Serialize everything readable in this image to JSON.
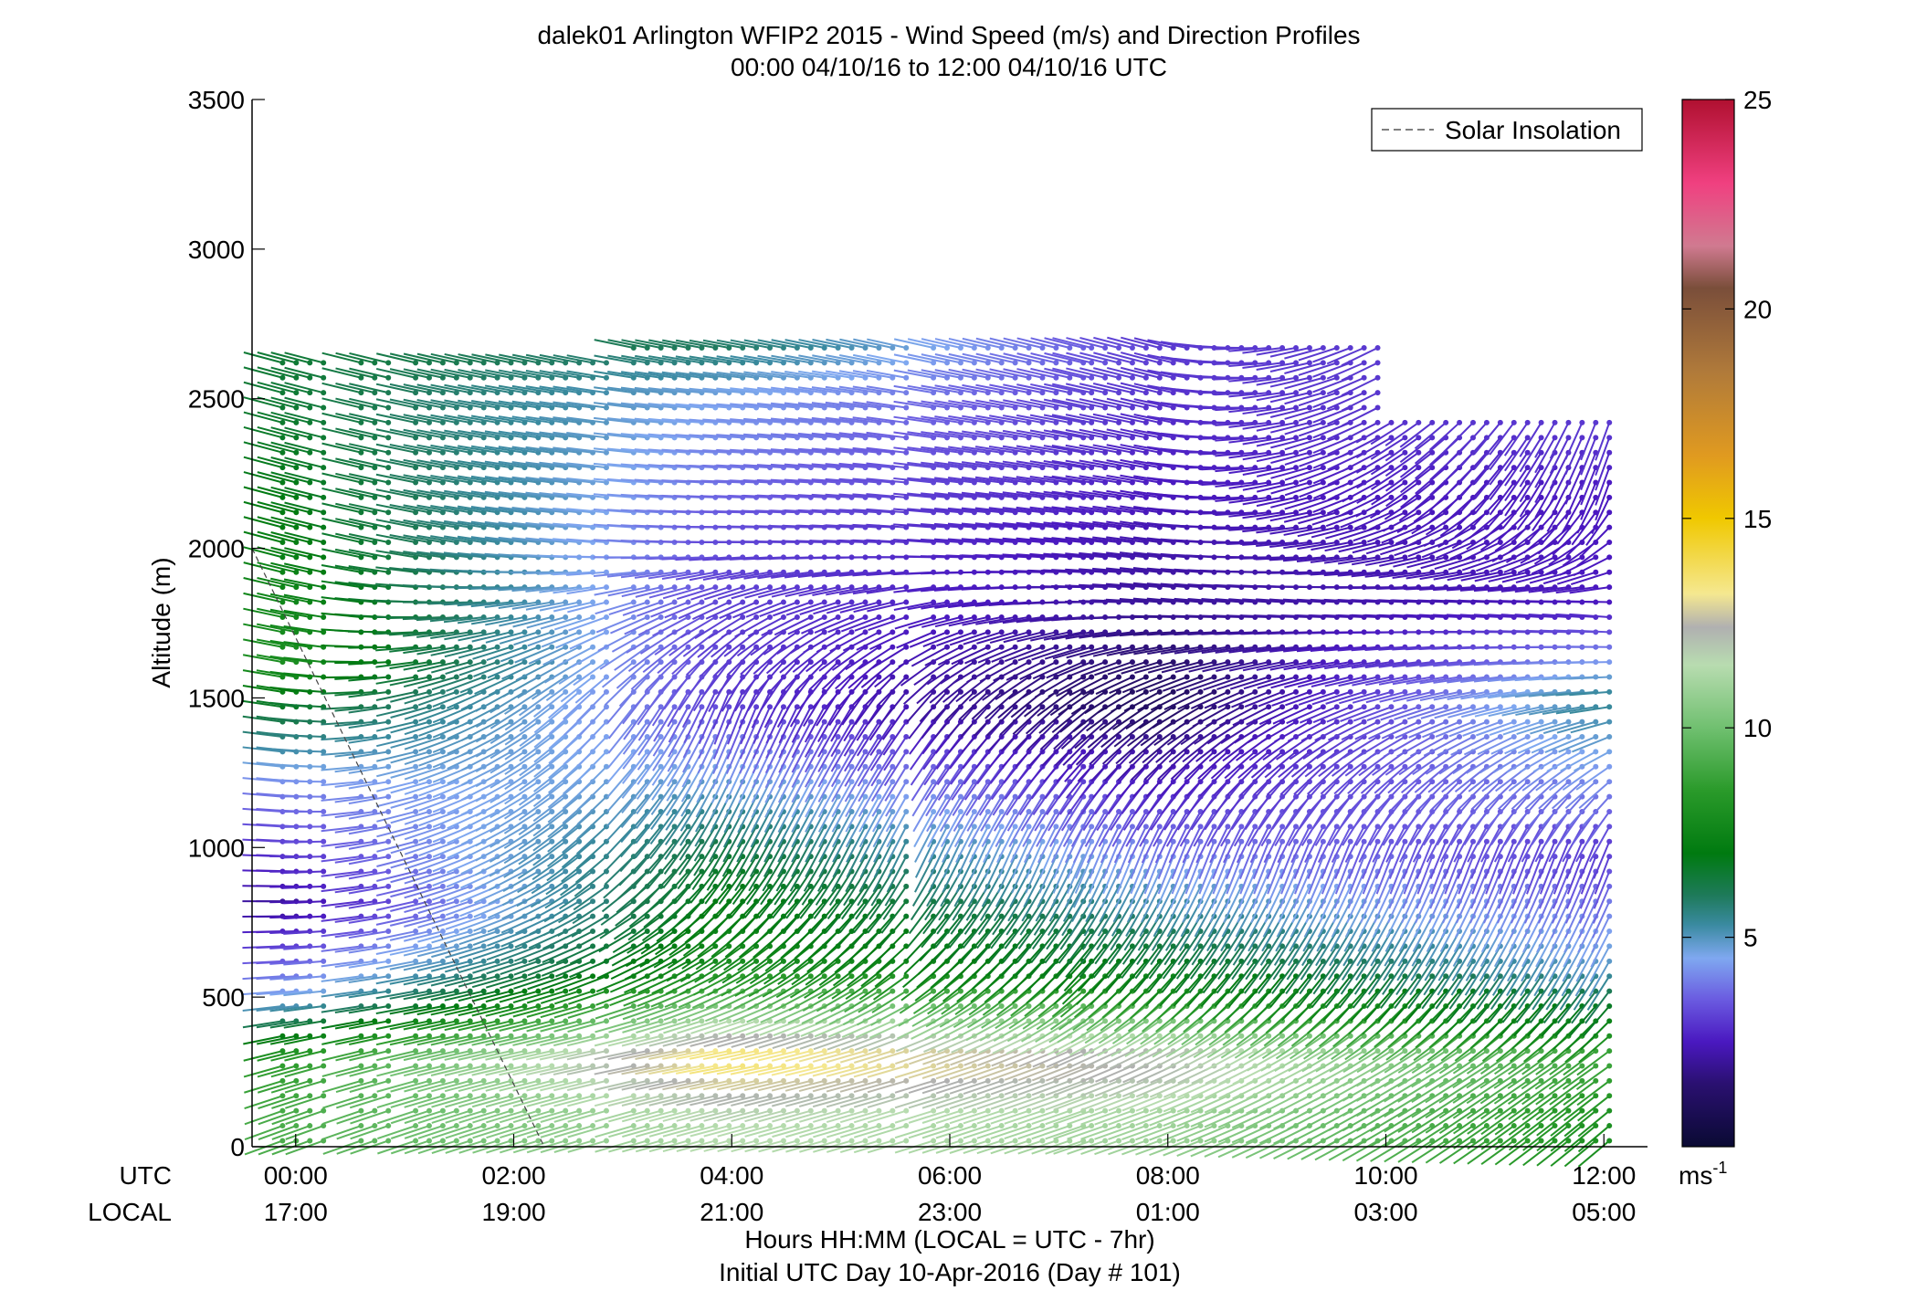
{
  "chart_data": {
    "type": "wind_barb_profile",
    "title": "dalek01 Arlington WFIP2 2015 - Wind Speed (m/s) and Direction Profiles",
    "subtitle": "00:00 04/10/16 to 12:00 04/10/16  UTC",
    "ylabel": "Altitude (m)",
    "xlabel_line1": "Hours HH:MM  (LOCAL = UTC - 7hr)",
    "xlabel_line2": "Initial UTC Day 10-Apr-2016 (Day # 101)",
    "ylim": [
      0,
      3500
    ],
    "yticks": [
      0,
      500,
      1000,
      1500,
      2000,
      2500,
      3000,
      3500
    ],
    "xlim_hours_utc": [
      -0.4,
      12.4
    ],
    "xticks_utc_hours": [
      0,
      2,
      4,
      6,
      8,
      10,
      12
    ],
    "xtick_labels_utc": [
      "00:00",
      "02:00",
      "04:00",
      "06:00",
      "08:00",
      "10:00",
      "12:00"
    ],
    "xtick_labels_local": [
      "17:00",
      "19:00",
      "21:00",
      "23:00",
      "01:00",
      "03:00",
      "05:00"
    ],
    "row_label_utc": "UTC",
    "row_label_local": "LOCAL",
    "legend": {
      "entries": [
        "Solar Insolation"
      ],
      "placement": "top-right"
    },
    "colorbar": {
      "range": [
        0,
        25
      ],
      "ticks": [
        5,
        10,
        15,
        20,
        25
      ],
      "unit_label": "ms",
      "unit_exponent": "-1",
      "stops": [
        {
          "v": 0,
          "c": "#0a0a33"
        },
        {
          "v": 1.5,
          "c": "#2a1070"
        },
        {
          "v": 2.5,
          "c": "#4a18c0"
        },
        {
          "v": 3.5,
          "c": "#6a5ae0"
        },
        {
          "v": 4.5,
          "c": "#7fa8f0"
        },
        {
          "v": 5.3,
          "c": "#3a8aa0"
        },
        {
          "v": 6.0,
          "c": "#1e7a5a"
        },
        {
          "v": 7.0,
          "c": "#007a10"
        },
        {
          "v": 8.5,
          "c": "#2a9a2a"
        },
        {
          "v": 10.0,
          "c": "#70c070"
        },
        {
          "v": 11.5,
          "c": "#b8dcb0"
        },
        {
          "v": 12.4,
          "c": "#b0b0b0"
        },
        {
          "v": 13.2,
          "c": "#f5e890"
        },
        {
          "v": 15.0,
          "c": "#f0c800"
        },
        {
          "v": 16.5,
          "c": "#e09a20"
        },
        {
          "v": 18.5,
          "c": "#b07a3a"
        },
        {
          "v": 20.5,
          "c": "#7a4e3a"
        },
        {
          "v": 21.5,
          "c": "#d07a90"
        },
        {
          "v": 23.0,
          "c": "#f04080"
        },
        {
          "v": 25.0,
          "c": "#b01030"
        }
      ]
    },
    "solar_insolation_line": {
      "x_hours_utc": [
        -0.4,
        2.28
      ],
      "y_altitude_m": [
        2000,
        0
      ]
    },
    "time_segments_utc_hours": [
      [
        -0.12,
        0.35
      ],
      [
        0.6,
        0.9
      ],
      [
        1.1,
        2.9
      ],
      [
        3.1,
        5.65
      ],
      [
        5.85,
        7.3
      ],
      [
        7.3,
        12.1
      ]
    ],
    "wind_profiles": [
      {
        "t": 0.0,
        "levels": [
          {
            "z": 100,
            "spd": 9.2,
            "dir": 250
          },
          {
            "z": 300,
            "spd": 8.5,
            "dir": 255
          },
          {
            "z": 500,
            "spd": 4.5,
            "dir": 265
          },
          {
            "z": 800,
            "spd": 2.0,
            "dir": 270
          },
          {
            "z": 1200,
            "spd": 4.0,
            "dir": 275
          },
          {
            "z": 1600,
            "spd": 8.0,
            "dir": 280
          },
          {
            "z": 2000,
            "spd": 7.2,
            "dir": 285
          },
          {
            "z": 2500,
            "spd": 6.5,
            "dir": 285
          }
        ]
      },
      {
        "t": 4.0,
        "levels": [
          {
            "z": 100,
            "spd": 11.5,
            "dir": 255
          },
          {
            "z": 300,
            "spd": 13.8,
            "dir": 260
          },
          {
            "z": 600,
            "spd": 8.0,
            "dir": 240
          },
          {
            "z": 1000,
            "spd": 6.5,
            "dir": 210
          },
          {
            "z": 1500,
            "spd": 3.0,
            "dir": 200
          },
          {
            "z": 2000,
            "spd": 3.2,
            "dir": 270
          },
          {
            "z": 2500,
            "spd": 4.5,
            "dir": 275
          },
          {
            "z": 2800,
            "spd": 7.0,
            "dir": 285
          }
        ]
      },
      {
        "t": 8.0,
        "levels": [
          {
            "z": 100,
            "spd": 11.0,
            "dir": 250
          },
          {
            "z": 300,
            "spd": 12.5,
            "dir": 245
          },
          {
            "z": 600,
            "spd": 7.0,
            "dir": 220
          },
          {
            "z": 1000,
            "spd": 4.0,
            "dir": 200
          },
          {
            "z": 1500,
            "spd": 1.0,
            "dir": 240
          },
          {
            "z": 1800,
            "spd": 2.0,
            "dir": 275
          },
          {
            "z": 2200,
            "spd": 2.5,
            "dir": 280
          },
          {
            "z": 2600,
            "spd": 3.0,
            "dir": 285
          }
        ]
      },
      {
        "t": 12.0,
        "levels": [
          {
            "z": 100,
            "spd": 8.0,
            "dir": 230
          },
          {
            "z": 300,
            "spd": 9.0,
            "dir": 235
          },
          {
            "z": 600,
            "spd": 5.0,
            "dir": 210
          },
          {
            "z": 1000,
            "spd": 3.0,
            "dir": 200
          },
          {
            "z": 1500,
            "spd": 5.5,
            "dir": 265
          },
          {
            "z": 1800,
            "spd": 2.5,
            "dir": 275
          },
          {
            "z": 2200,
            "spd": 2.5,
            "dir": 200
          },
          {
            "z": 2400,
            "spd": 3.0,
            "dir": 200
          }
        ]
      }
    ]
  }
}
